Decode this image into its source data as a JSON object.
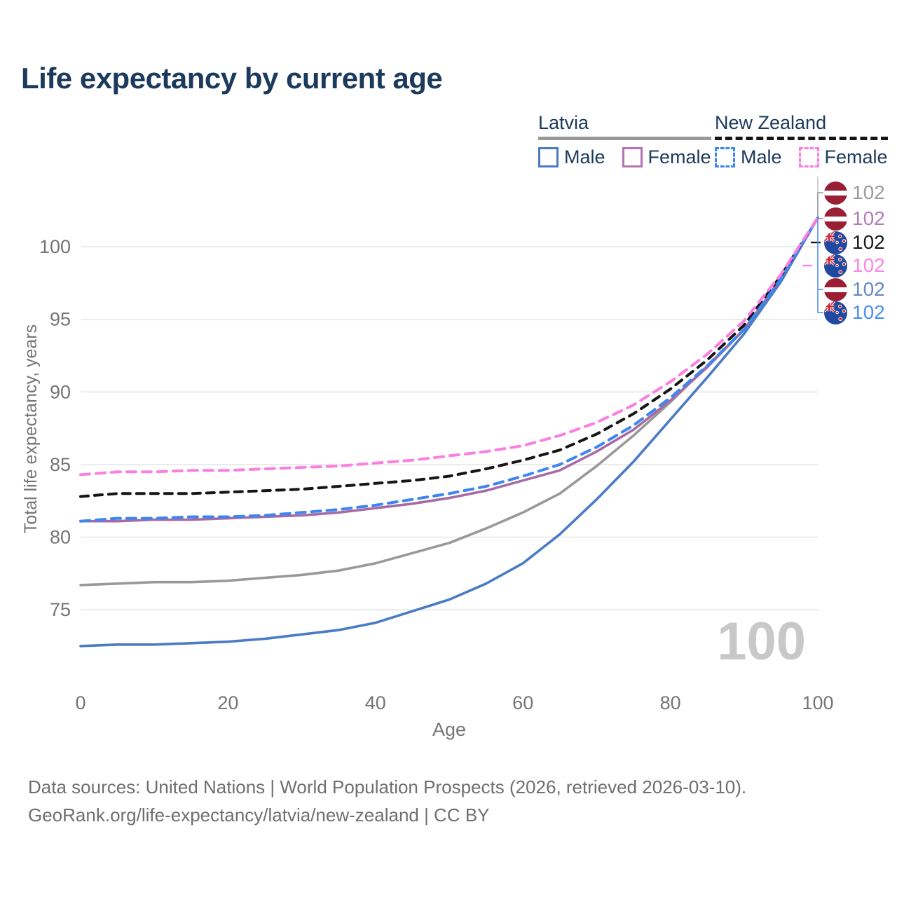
{
  "title": "Life expectancy by current age",
  "legend": {
    "groups": [
      {
        "label": "Latvia",
        "underline_style": "solid",
        "underline_color": "#999999",
        "items": [
          {
            "label": "Male",
            "color": "#4a7bc4",
            "dashed": false
          },
          {
            "label": "Female",
            "color": "#b473b4",
            "dashed": false
          }
        ]
      },
      {
        "label": "New Zealand",
        "underline_style": "dashed",
        "underline_color": "#151515",
        "items": [
          {
            "label": "Male",
            "color": "#3d86f0",
            "dashed": true
          },
          {
            "label": "Female",
            "color": "#fb7ee0",
            "dashed": true
          }
        ]
      }
    ]
  },
  "y_axis": {
    "title": "Total life expectancy, years",
    "ticks": [
      75,
      80,
      85,
      90,
      95,
      100
    ]
  },
  "x_axis": {
    "title": "Age",
    "ticks": [
      0,
      20,
      40,
      60,
      80,
      100
    ]
  },
  "crosshair": {
    "age_label": "100"
  },
  "end_labels": [
    {
      "series": "latvia-total",
      "flag": "lv",
      "value": "102",
      "color": "#9b9b9b"
    },
    {
      "series": "latvia-female",
      "flag": "lv",
      "value": "102",
      "color": "#b57ab8"
    },
    {
      "series": "nz-total",
      "flag": "nz",
      "value": "102",
      "color": "#1a1a1a"
    },
    {
      "series": "nz-female",
      "flag": "nz",
      "value": "102",
      "color": "#fd84e8"
    },
    {
      "series": "latvia-male",
      "flag": "lv",
      "value": "102",
      "color": "#6289c6"
    },
    {
      "series": "nz-male",
      "flag": "nz",
      "value": "102",
      "color": "#4b8ef2"
    }
  ],
  "flag_colors": {
    "latvia_red": "#9a1e34",
    "nz_blue": "#1f4aa0",
    "nz_star_red": "#cc2233"
  },
  "source": {
    "line1": "Data sources: United Nations | World Population Prospects (2026, retrieved 2026-03-10).",
    "line2": "GeoRank.org/life-expectancy/latvia/new-zealand | CC BY"
  },
  "chart_data": {
    "type": "line",
    "title": "Life expectancy by current age",
    "xlabel": "Age",
    "ylabel": "Total life expectancy, years",
    "xlim": [
      0,
      100
    ],
    "ylim": [
      71,
      103
    ],
    "grid": true,
    "legend_position": "top-right",
    "highlighted_age": 100,
    "converge_value": 102,
    "x": [
      0,
      5,
      10,
      15,
      20,
      25,
      30,
      35,
      40,
      45,
      50,
      55,
      60,
      65,
      70,
      75,
      80,
      85,
      90,
      95,
      100
    ],
    "series": [
      {
        "name": "Latvia Total",
        "id": "latvia-total",
        "color": "#999999",
        "dash": false,
        "width": 3.6,
        "values": [
          76.7,
          76.8,
          76.9,
          76.9,
          77.0,
          77.2,
          77.4,
          77.7,
          78.2,
          78.9,
          79.6,
          80.6,
          81.7,
          83.0,
          84.9,
          87.0,
          89.3,
          91.8,
          94.3,
          97.8,
          102
        ]
      },
      {
        "name": "Latvia Female",
        "id": "latvia-female",
        "color": "#a76ba3",
        "dash": false,
        "width": 3.6,
        "values": [
          81.1,
          81.1,
          81.2,
          81.2,
          81.3,
          81.4,
          81.5,
          81.7,
          82.0,
          82.3,
          82.7,
          83.2,
          83.9,
          84.6,
          85.9,
          87.4,
          89.4,
          91.7,
          94.3,
          97.8,
          102
        ]
      },
      {
        "name": "Latvia Male",
        "id": "latvia-male",
        "color": "#4a7bc4",
        "dash": false,
        "width": 3.6,
        "values": [
          72.5,
          72.6,
          72.6,
          72.7,
          72.8,
          73.0,
          73.3,
          73.6,
          74.1,
          74.9,
          75.7,
          76.8,
          78.2,
          80.2,
          82.6,
          85.2,
          88.1,
          91.0,
          94.0,
          97.6,
          102
        ]
      },
      {
        "name": "New Zealand Total",
        "id": "nz-total",
        "color": "#151515",
        "dash": true,
        "width": 4,
        "values": [
          82.8,
          83.0,
          83.0,
          83.0,
          83.1,
          83.2,
          83.3,
          83.5,
          83.7,
          83.9,
          84.2,
          84.7,
          85.3,
          86.0,
          87.1,
          88.5,
          90.2,
          92.2,
          94.6,
          98.0,
          102
        ]
      },
      {
        "name": "New Zealand Male",
        "id": "nz-male",
        "color": "#3d86f0",
        "dash": true,
        "width": 4,
        "values": [
          81.1,
          81.3,
          81.3,
          81.4,
          81.4,
          81.5,
          81.7,
          81.9,
          82.2,
          82.6,
          83.0,
          83.5,
          84.2,
          85.0,
          86.2,
          87.7,
          89.6,
          91.8,
          94.3,
          97.8,
          102
        ]
      },
      {
        "name": "New Zealand Female",
        "id": "nz-female",
        "color": "#fb7ee0",
        "dash": true,
        "width": 4,
        "values": [
          84.3,
          84.5,
          84.5,
          84.6,
          84.6,
          84.7,
          84.8,
          84.9,
          85.1,
          85.3,
          85.6,
          85.9,
          86.3,
          87.0,
          87.9,
          89.1,
          90.7,
          92.6,
          94.9,
          98.1,
          102
        ]
      }
    ]
  }
}
